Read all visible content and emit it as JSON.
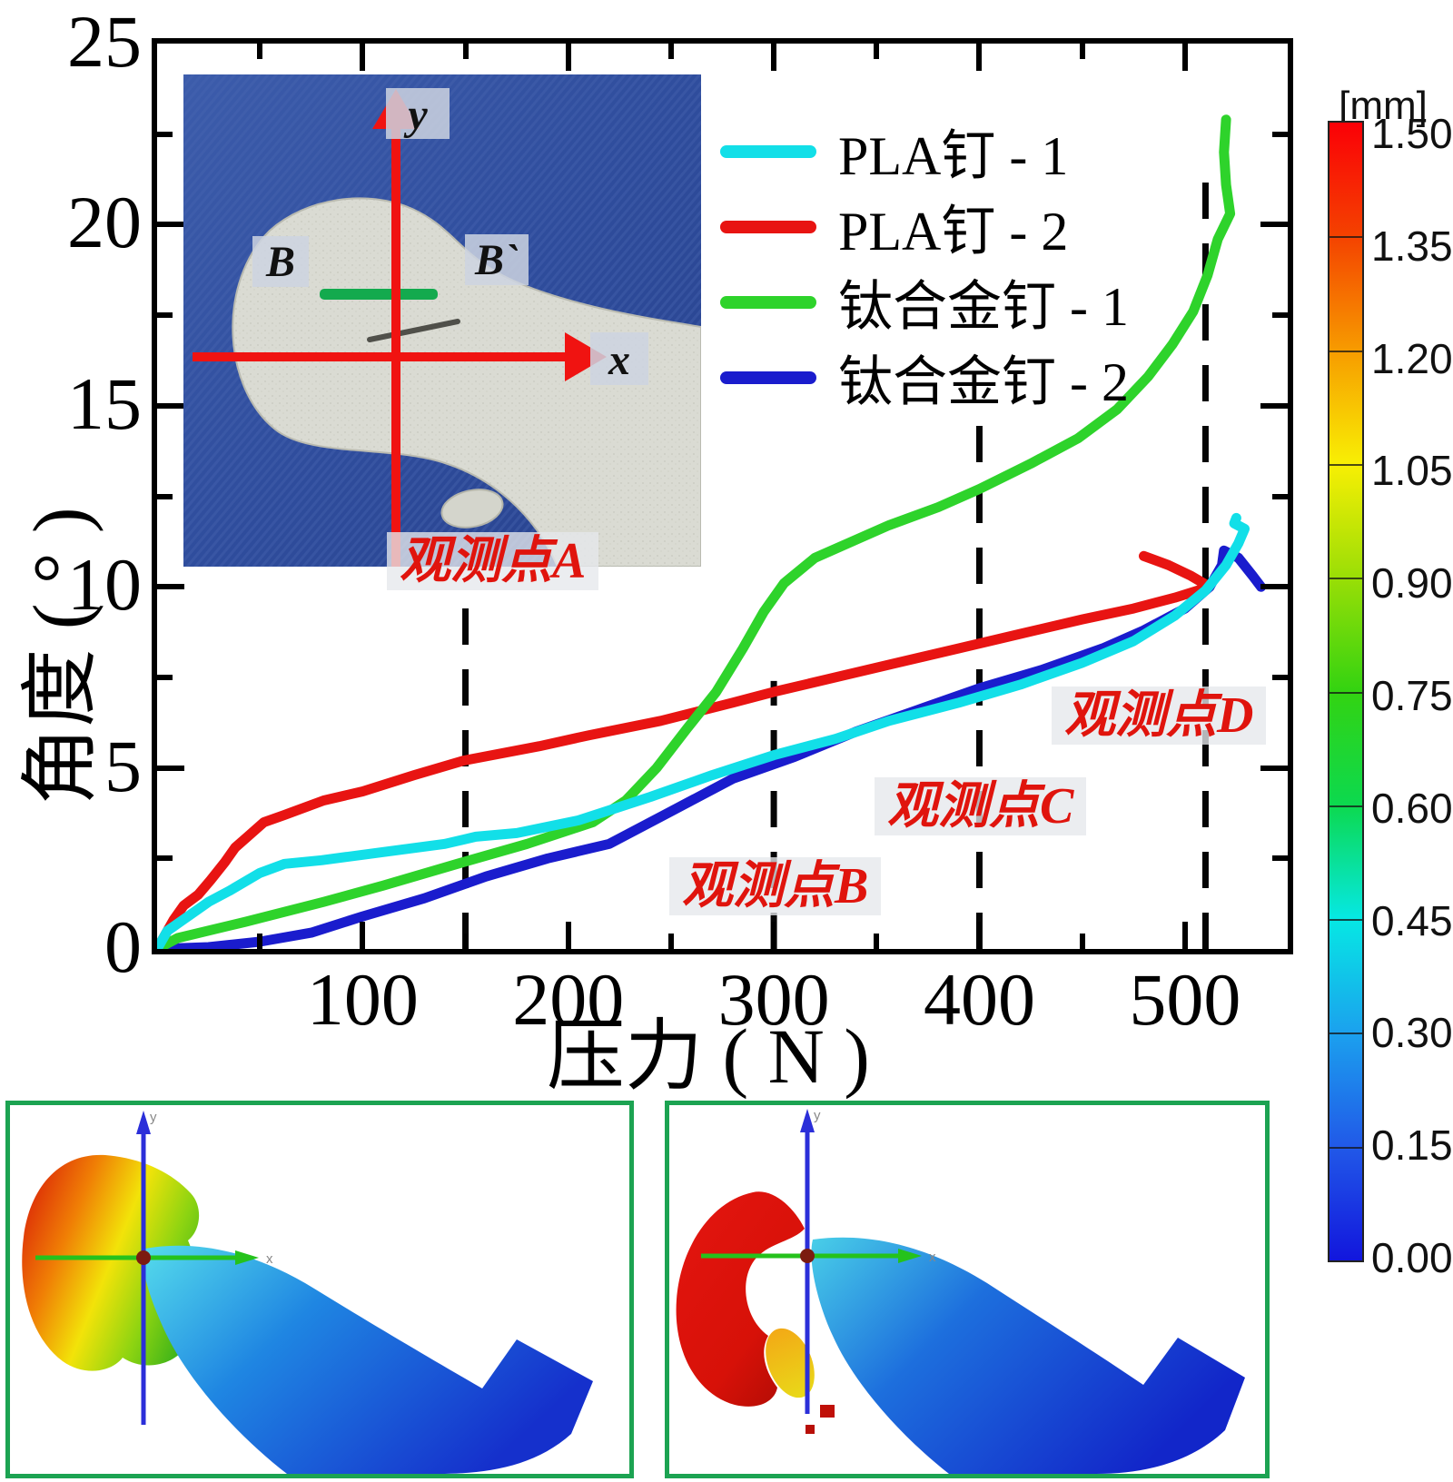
{
  "chart_data": {
    "type": "line",
    "title": "",
    "xlabel": "压力 ( N )",
    "ylabel": "角度 ( ° )",
    "xlim": [
      0,
      550
    ],
    "ylim": [
      0,
      25
    ],
    "grid": false,
    "legend_position": "upper-left-inside",
    "x_major_ticks": [
      100,
      200,
      300,
      400,
      500
    ],
    "x_minor_ticks": [
      50,
      150,
      250,
      350,
      450
    ],
    "y_major_ticks": [
      0,
      5,
      10,
      15,
      20,
      25
    ],
    "y_minor_ticks": [
      2.5,
      7.5,
      12.5,
      17.5,
      22.5
    ],
    "series": [
      {
        "name": "PLA钉 - 1",
        "color": "#12dfe8",
        "points": [
          [
            0,
            0
          ],
          [
            5,
            0.5
          ],
          [
            15,
            0.9
          ],
          [
            25,
            1.3
          ],
          [
            35,
            1.6
          ],
          [
            50,
            2.1
          ],
          [
            62,
            2.35
          ],
          [
            80,
            2.45
          ],
          [
            100,
            2.6
          ],
          [
            120,
            2.75
          ],
          [
            140,
            2.9
          ],
          [
            155,
            3.1
          ],
          [
            175,
            3.2
          ],
          [
            205,
            3.55
          ],
          [
            240,
            4.2
          ],
          [
            270,
            4.8
          ],
          [
            300,
            5.35
          ],
          [
            330,
            5.8
          ],
          [
            356,
            6.3
          ],
          [
            390,
            6.8
          ],
          [
            420,
            7.3
          ],
          [
            450,
            7.9
          ],
          [
            475,
            8.5
          ],
          [
            495,
            9.2
          ],
          [
            510,
            9.9
          ],
          [
            520,
            10.6
          ],
          [
            526,
            11.2
          ],
          [
            529,
            11.6
          ],
          [
            524,
            11.75
          ],
          [
            525,
            11.9
          ]
        ]
      },
      {
        "name": "PLA钉 - 2",
        "color": "#e81412",
        "points": [
          [
            0,
            0
          ],
          [
            4,
            0.4
          ],
          [
            8,
            0.8
          ],
          [
            13,
            1.2
          ],
          [
            20,
            1.5
          ],
          [
            26,
            1.9
          ],
          [
            33,
            2.4
          ],
          [
            38,
            2.8
          ],
          [
            44,
            3.1
          ],
          [
            52,
            3.5
          ],
          [
            62,
            3.7
          ],
          [
            81,
            4.1
          ],
          [
            100,
            4.35
          ],
          [
            125,
            4.8
          ],
          [
            149,
            5.2
          ],
          [
            186,
            5.6
          ],
          [
            210,
            5.9
          ],
          [
            245,
            6.3
          ],
          [
            280,
            6.8
          ],
          [
            300,
            7.1
          ],
          [
            330,
            7.5
          ],
          [
            360,
            7.9
          ],
          [
            390,
            8.3
          ],
          [
            420,
            8.7
          ],
          [
            450,
            9.1
          ],
          [
            475,
            9.4
          ],
          [
            495,
            9.7
          ],
          [
            512,
            10.0
          ],
          [
            503,
            10.3
          ],
          [
            492,
            10.6
          ],
          [
            480,
            10.85
          ]
        ]
      },
      {
        "name": "钛合金钉 - 1",
        "color": "#2ed32b",
        "points": [
          [
            0,
            0
          ],
          [
            10,
            0.3
          ],
          [
            43,
            0.75
          ],
          [
            81,
            1.3
          ],
          [
            110,
            1.75
          ],
          [
            146,
            2.35
          ],
          [
            180,
            2.9
          ],
          [
            212,
            3.5
          ],
          [
            228,
            4.1
          ],
          [
            243,
            5.0
          ],
          [
            258,
            6.1
          ],
          [
            272,
            7.1
          ],
          [
            285,
            8.3
          ],
          [
            295,
            9.3
          ],
          [
            305,
            10.1
          ],
          [
            320,
            10.8
          ],
          [
            340,
            11.3
          ],
          [
            356,
            11.7
          ],
          [
            380,
            12.2
          ],
          [
            400,
            12.7
          ],
          [
            425,
            13.4
          ],
          [
            448,
            14.1
          ],
          [
            467,
            14.9
          ],
          [
            482,
            15.8
          ],
          [
            494,
            16.7
          ],
          [
            504,
            17.6
          ],
          [
            511,
            18.6
          ],
          [
            516,
            19.6
          ],
          [
            522,
            20.3
          ],
          [
            520,
            21.1
          ],
          [
            519,
            22.0
          ],
          [
            520,
            22.9
          ]
        ]
      },
      {
        "name": "钛合金钉 - 2",
        "color": "#1a1ccd",
        "points": [
          [
            0,
            0
          ],
          [
            25,
            0.05
          ],
          [
            50,
            0.2
          ],
          [
            75,
            0.45
          ],
          [
            100,
            0.9
          ],
          [
            130,
            1.4
          ],
          [
            160,
            2.0
          ],
          [
            190,
            2.5
          ],
          [
            220,
            2.9
          ],
          [
            250,
            3.8
          ],
          [
            280,
            4.7
          ],
          [
            310,
            5.3
          ],
          [
            340,
            6.0
          ],
          [
            370,
            6.6
          ],
          [
            400,
            7.2
          ],
          [
            430,
            7.7
          ],
          [
            460,
            8.3
          ],
          [
            480,
            8.8
          ],
          [
            500,
            9.4
          ],
          [
            512,
            10.0
          ],
          [
            518,
            10.6
          ],
          [
            519,
            11.0
          ],
          [
            526,
            10.8
          ],
          [
            533,
            10.3
          ],
          [
            537,
            10.0
          ]
        ]
      }
    ],
    "observation_lines": [
      {
        "label": "观测点A",
        "x": 150,
        "top_angle": 10.0
      },
      {
        "label": "观测点B",
        "x": 300,
        "top_angle": 7.4
      },
      {
        "label": "观测点C",
        "x": 400,
        "top_angle": 14.5
      },
      {
        "label": "观测点D",
        "x": 510,
        "top_angle": 21.6
      }
    ],
    "colorbar": {
      "title": "[mm]",
      "unit": "mm",
      "min": 0.0,
      "max": 1.5,
      "tick_labels": [
        "1.50",
        "1.35",
        "1.20",
        "1.05",
        "0.90",
        "0.75",
        "0.60",
        "0.45",
        "0.30",
        "0.15",
        "0.00"
      ],
      "stops": [
        [
          1.5,
          "#fb0007"
        ],
        [
          1.35,
          "#f44200"
        ],
        [
          1.2,
          "#f79b00"
        ],
        [
          1.05,
          "#f8ef04"
        ],
        [
          0.9,
          "#9ade06"
        ],
        [
          0.75,
          "#33d311"
        ],
        [
          0.6,
          "#0cd94f"
        ],
        [
          0.45,
          "#06e8e4"
        ],
        [
          0.3,
          "#1ba1ee"
        ],
        [
          0.15,
          "#2159e8"
        ],
        [
          0.0,
          "#1216dd"
        ]
      ]
    }
  },
  "inset": {
    "label_b": "B",
    "label_b_prime": "B`",
    "axis_x": "x",
    "axis_y": "y",
    "obs_a": "观测点A"
  },
  "panels": {
    "left": {
      "axis_x": "x",
      "axis_y": "y"
    },
    "right": {
      "axis_x": "x",
      "axis_y": "y"
    }
  }
}
